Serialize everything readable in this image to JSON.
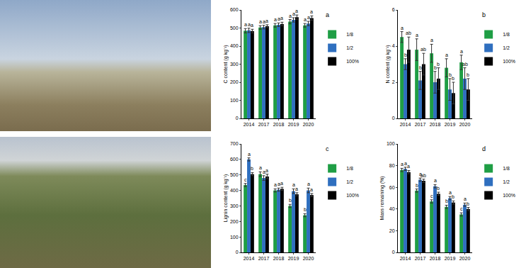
{
  "chart_data": [
    {
      "type": "bar",
      "panel_label": "a",
      "y_label": "C content (g kg⁻¹)",
      "categories": [
        "2014",
        "2017",
        "2018",
        "2019",
        "2020"
      ],
      "ylim": [
        0,
        600
      ],
      "yticks": [
        0,
        100,
        200,
        300,
        400,
        500,
        600
      ],
      "legend": "right",
      "grid": false,
      "series": [
        {
          "name": "1/8",
          "color": "#1f9e45",
          "values": [
            485,
            503,
            515,
            535,
            515
          ],
          "errors": [
            12,
            10,
            10,
            12,
            10
          ],
          "letters": [
            "a",
            "a",
            "a",
            "a",
            "a"
          ]
        },
        {
          "name": "1/2",
          "color": "#2f6fbf",
          "values": [
            487,
            505,
            518,
            545,
            525
          ],
          "errors": [
            12,
            10,
            10,
            12,
            12
          ],
          "letters": [
            "a",
            "a",
            "a",
            "a",
            "a"
          ]
        },
        {
          "name": "100%",
          "color": "#000000",
          "values": [
            483,
            510,
            522,
            560,
            555
          ],
          "errors": [
            10,
            8,
            10,
            12,
            12
          ],
          "letters": [
            "a",
            "a",
            "a",
            "a",
            "a"
          ]
        }
      ]
    },
    {
      "type": "bar",
      "panel_label": "b",
      "y_label": "N content (g kg⁻¹)",
      "categories": [
        "2014",
        "2017",
        "2018",
        "2019",
        "2020"
      ],
      "ylim": [
        0,
        6
      ],
      "yticks": [
        0,
        2,
        4,
        6
      ],
      "legend": "right",
      "grid": false,
      "series": [
        {
          "name": "1/8",
          "color": "#1f9e45",
          "values": [
            4.5,
            3.8,
            3.6,
            2.8,
            3.1
          ],
          "errors": [
            0.3,
            0.6,
            0.5,
            0.5,
            0.4
          ],
          "letters": [
            "a",
            "a",
            "a",
            "a",
            "a"
          ]
        },
        {
          "name": "1/2",
          "color": "#2f6fbf",
          "values": [
            3.0,
            2.1,
            2.0,
            1.6,
            2.2
          ],
          "errors": [
            0.3,
            0.5,
            0.6,
            0.6,
            0.6
          ],
          "letters": [
            "b",
            "b",
            "b",
            "b",
            "ab"
          ]
        },
        {
          "name": "100%",
          "color": "#000000",
          "values": [
            3.8,
            3.0,
            2.2,
            1.4,
            1.6
          ],
          "errors": [
            0.7,
            0.6,
            0.6,
            0.6,
            0.6
          ],
          "letters": [
            "ab",
            "ab",
            "b",
            "b",
            "b"
          ]
        }
      ]
    },
    {
      "type": "bar",
      "panel_label": "c",
      "y_label": "Lignin content (g kg⁻¹)",
      "categories": [
        "2014",
        "2017",
        "2018",
        "2019",
        "2020"
      ],
      "ylim": [
        0,
        700
      ],
      "yticks": [
        0,
        100,
        200,
        300,
        400,
        500,
        600,
        700
      ],
      "legend": "right",
      "grid": false,
      "series": [
        {
          "name": "1/8",
          "color": "#1f9e45",
          "values": [
            435,
            505,
            400,
            300,
            240
          ],
          "errors": [
            10,
            15,
            10,
            10,
            10
          ],
          "letters": [
            "c",
            "a",
            "a",
            "b",
            "b"
          ]
        },
        {
          "name": "1/2",
          "color": "#2f6fbf",
          "values": [
            600,
            480,
            405,
            395,
            400
          ],
          "errors": [
            10,
            15,
            10,
            15,
            15
          ],
          "letters": [
            "a",
            "a",
            "a",
            "a",
            "a"
          ]
        },
        {
          "name": "100%",
          "color": "#000000",
          "values": [
            505,
            490,
            410,
            375,
            370
          ],
          "errors": [
            10,
            15,
            10,
            10,
            10
          ],
          "letters": [
            "b",
            "a",
            "a",
            "a",
            "a"
          ]
        }
      ]
    },
    {
      "type": "bar",
      "panel_label": "d",
      "y_label": "Mass remaining (%)",
      "categories": [
        "2014",
        "2017",
        "2018",
        "2019",
        "2020"
      ],
      "ylim": [
        0,
        100
      ],
      "yticks": [
        0,
        20,
        40,
        60,
        80,
        100
      ],
      "legend": "right",
      "grid": false,
      "series": [
        {
          "name": "1/8",
          "color": "#1f9e45",
          "values": [
            76,
            57,
            47,
            42,
            35
          ],
          "errors": [
            1.5,
            1.5,
            1.5,
            1.5,
            1.5
          ],
          "letters": [
            "a",
            "b",
            "c",
            "b",
            "c"
          ]
        },
        {
          "name": "1/2",
          "color": "#2f6fbf",
          "values": [
            77,
            67,
            61,
            50,
            44
          ],
          "errors": [
            1.5,
            1.5,
            1.5,
            1.5,
            1.5
          ],
          "letters": [
            "a",
            "a",
            "a",
            "a",
            "a"
          ]
        },
        {
          "name": "100%",
          "color": "#000000",
          "values": [
            74,
            66,
            54,
            46,
            40
          ],
          "errors": [
            1.5,
            1.5,
            1.5,
            1.5,
            1.5
          ],
          "letters": [
            "a",
            "ab",
            "b",
            "b",
            "b"
          ]
        }
      ]
    }
  ]
}
